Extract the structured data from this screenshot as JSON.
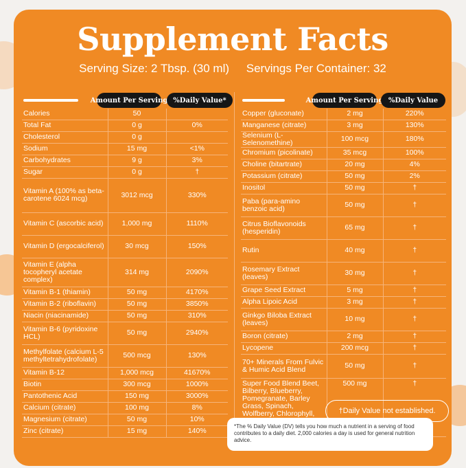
{
  "title": "Supplement Facts",
  "serving_size": "Serving Size: 2 Tbsp. (30 ml)",
  "servings_per_container": "Servings Per Container: 32",
  "headers": {
    "amount": "Amount Per Serving",
    "dv_left": "%Daily Value*",
    "dv_right": "%Daily Value"
  },
  "left_rows": [
    {
      "name": "Calories",
      "amount": "50",
      "dv": ""
    },
    {
      "name": "Total Fat",
      "amount": "0 g",
      "dv": "0%"
    },
    {
      "name": "Cholesterol",
      "amount": "0 g",
      "dv": ""
    },
    {
      "name": "Sodium",
      "amount": "15 mg",
      "dv": "<1%"
    },
    {
      "name": "Carbohydrates",
      "amount": "9 g",
      "dv": "3%"
    },
    {
      "name": "Sugar",
      "amount": "0 g",
      "dv": "†"
    },
    {
      "name": "Vitamin A (100% as beta-carotene 6024 mcg)",
      "amount": "3012 mcg",
      "dv": "330%"
    },
    {
      "name": "Vitamin C (ascorbic acid)",
      "amount": "1,000 mg",
      "dv": "1110%"
    },
    {
      "name": "Vitamin D (ergocalciferol)",
      "amount": "30 mcg",
      "dv": "150%"
    },
    {
      "name": "Vitamin E (alpha tocopheryl acetate complex)",
      "amount": "314 mg",
      "dv": "2090%"
    },
    {
      "name": "Vitamin B-1 (thiamin)",
      "amount": "50 mg",
      "dv": "4170%"
    },
    {
      "name": "Vitamin B-2 (riboflavin)",
      "amount": "50 mg",
      "dv": "3850%"
    },
    {
      "name": "Niacin (niacinamide)",
      "amount": "50 mg",
      "dv": "310%"
    },
    {
      "name": "Vitamin B-6 (pyridoxine HCL)",
      "amount": "50 mg",
      "dv": "2940%"
    },
    {
      "name": "Methylfolate (calcium L-5 methyltetrahydrofolate)",
      "amount": "500 mcg",
      "dv": "130%"
    },
    {
      "name": "Vitamin B-12",
      "amount": "1,000 mcg",
      "dv": "41670%"
    },
    {
      "name": "Biotin",
      "amount": "300 mcg",
      "dv": "1000%"
    },
    {
      "name": "Pantothenic Acid",
      "amount": "150 mg",
      "dv": "3000%"
    },
    {
      "name": "Calcium (citrate)",
      "amount": "100 mg",
      "dv": "8%"
    },
    {
      "name": "Magnesium (citrate)",
      "amount": "50 mg",
      "dv": "10%"
    },
    {
      "name": "Zinc (citrate)",
      "amount": "15 mg",
      "dv": "140%"
    }
  ],
  "right_rows": [
    {
      "name": "Copper (gluconate)",
      "amount": "2 mg",
      "dv": "220%"
    },
    {
      "name": "Manganese (citrate)",
      "amount": "3 mg",
      "dv": "130%"
    },
    {
      "name": "Selenium (L-Selenomethine)",
      "amount": "100 mcg",
      "dv": "180%"
    },
    {
      "name": "Chromium (picolinate)",
      "amount": "35 mcg",
      "dv": "100%"
    },
    {
      "name": "Choline (bitartrate)",
      "amount": "20 mg",
      "dv": "4%"
    },
    {
      "name": "Potassium (citrate)",
      "amount": "50 mg",
      "dv": "2%"
    },
    {
      "name": "Inositol",
      "amount": "50 mg",
      "dv": "†"
    },
    {
      "name": "Paba (para-amino benzoic acid)",
      "amount": "50 mg",
      "dv": "†"
    },
    {
      "name": "Citrus Bioflavonoids (hesperidin)",
      "amount": "65 mg",
      "dv": "†"
    },
    {
      "name": "Rutin",
      "amount": "40 mg",
      "dv": "†"
    },
    {
      "name": "Rosemary Extract (leaves)",
      "amount": "30 mg",
      "dv": "†"
    },
    {
      "name": "Grape Seed Extract",
      "amount": "5 mg",
      "dv": "†"
    },
    {
      "name": "Alpha Lipoic Acid",
      "amount": "3 mg",
      "dv": "†"
    },
    {
      "name": "Ginkgo Biloba Extract (leaves)",
      "amount": "10 mg",
      "dv": "†"
    },
    {
      "name": "Boron (citrate)",
      "amount": "2 mg",
      "dv": "†"
    },
    {
      "name": "Lycopene",
      "amount": "200 mcg",
      "dv": "†"
    },
    {
      "name": "70+ Minerals From Fulvic & Humic Acid Blend",
      "amount": "50 mg",
      "dv": "†"
    },
    {
      "name": "Super Food Blend Beet, Bilberry, Blueberry, Pomegranate, Barley Grass, Spinach, Wolfberry, Chlorophyll, Cranberry and Spirulina",
      "amount": "500 mg",
      "dv": "†"
    }
  ],
  "dv_not_established": "†Daily Value not established.",
  "footnote": "*The % Daily Value (DV) tells you how much a nutrient in a serving of food contributes to a daily diet. 2,000 calories a day is used for general nutrition advice.",
  "colors": {
    "card": "#f08a24",
    "header_pill": "#161616",
    "divider": "#f6b47a"
  }
}
